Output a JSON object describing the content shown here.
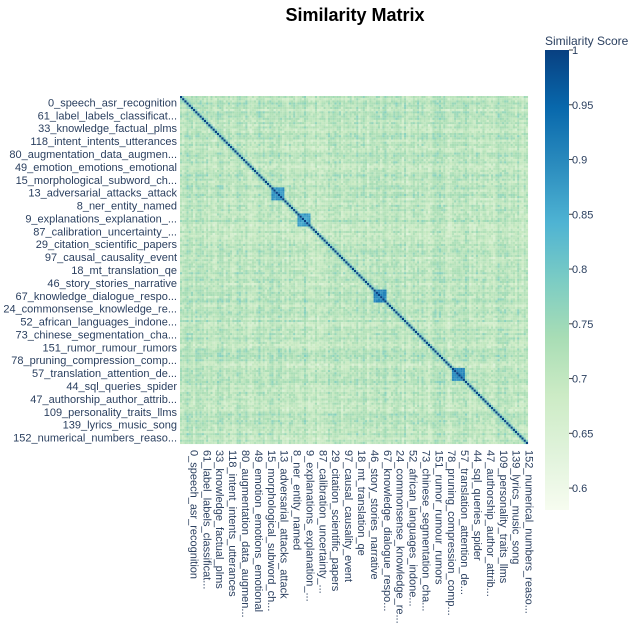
{
  "chart_data": {
    "type": "heatmap",
    "title": "Similarity Matrix",
    "colorbar_title": "Similarity Score",
    "colorscale": "GnBu",
    "zlim": [
      0.58,
      1.0
    ],
    "colorbar_ticks": [
      "1",
      "0.95",
      "0.9",
      "0.85",
      "0.8",
      "0.75",
      "0.7",
      "0.65",
      "0.6"
    ],
    "grid": false,
    "matrix_size": 160,
    "diagonal_value": 1,
    "typical_offdiagonal_range": [
      0.6,
      0.85
    ],
    "labels": [
      "0_speech_asr_recognition",
      "61_label_labels_classificat...",
      "33_knowledge_factual_plms",
      "118_intent_intents_utterances",
      "80_augmentation_data_augmen...",
      "49_emotion_emotions_emotional",
      "15_morphological_subword_ch...",
      "13_adversarial_attacks_attack",
      "8_ner_entity_named",
      "9_explanations_explanation_...",
      "87_calibration_uncertainty_...",
      "29_citation_scientific_papers",
      "97_causal_causality_event",
      "18_mt_translation_qe",
      "46_story_stories_narrative",
      "67_knowledge_dialogue_respo...",
      "24_commonsense_knowledge_re...",
      "52_african_languages_indone...",
      "73_chinese_segmentation_cha...",
      "151_rumor_rumour_rumors",
      "78_pruning_compression_comp...",
      "57_translation_attention_de...",
      "44_sql_queries_spider",
      "47_authorship_author_attrib...",
      "109_personality_traits_llms",
      "139_lyrics_music_song",
      "152_numerical_numbers_reaso..."
    ],
    "high_similarity_blocks": [
      {
        "label": "13_adversarial_attacks_attack",
        "value": 0.88
      },
      {
        "label": "9_explanations_explanation_...",
        "value": 0.87
      },
      {
        "label": "67_knowledge_dialogue_respo...",
        "value": 0.9
      },
      {
        "label": "57_translation_attention_de...",
        "value": 0.9
      }
    ]
  }
}
